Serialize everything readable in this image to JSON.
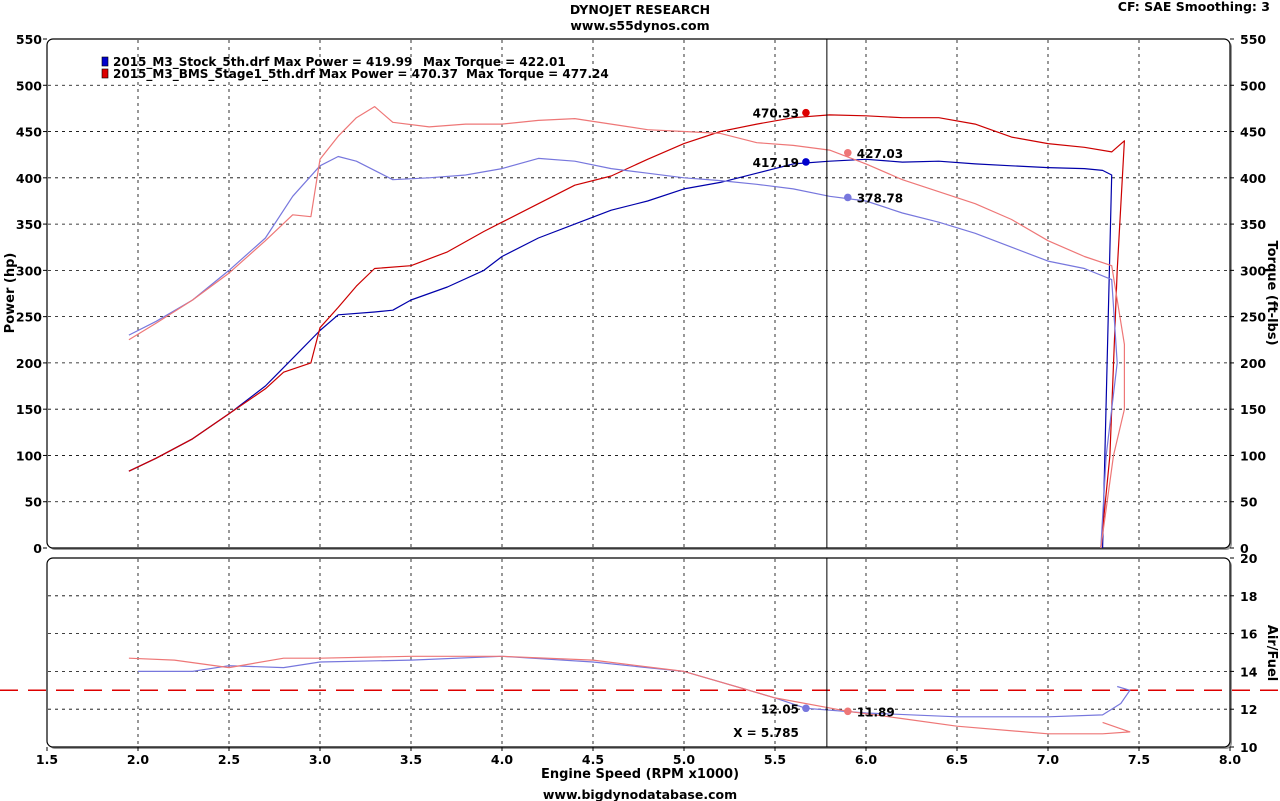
{
  "header": {
    "title": "DYNOJET RESEARCH",
    "subtitle": "www.s55dynos.com",
    "cf_info": "CF: SAE  Smoothing: 3",
    "footer": "www.bigdynodatabase.com"
  },
  "chart_data": [
    {
      "type": "line",
      "name": "power-torque",
      "xlabel": "Engine Speed (RPM x1000)",
      "ylabel": "Power (hp)",
      "y2label": "Torque (ft-lbs)",
      "xlim": [
        1.5,
        8.0
      ],
      "ylim": [
        0,
        550
      ],
      "y2lim": [
        0,
        550
      ],
      "x_ticks": [
        "1.5",
        "2.0",
        "2.5",
        "3.0",
        "3.5",
        "4.0",
        "4.5",
        "5.0",
        "5.5",
        "6.0",
        "6.5",
        "7.0",
        "7.5",
        "8.0"
      ],
      "y_ticks": [
        "0",
        "50",
        "100",
        "150",
        "200",
        "250",
        "300",
        "350",
        "400",
        "450",
        "500",
        "550"
      ],
      "grid": true,
      "legend_position": "top-left",
      "cursor_x": 5.785,
      "legend": [
        {
          "file": "2015_M3_Stock_5th.drf",
          "max_power_label": "Max Power = 419.99",
          "max_torque_label": "Max Torque = 422.01",
          "color": "#0000cc"
        },
        {
          "file": "2015_M3_BMS_Stage1_5th.drf",
          "max_power_label": "Max Power = 470.37",
          "max_torque_label": "Max Torque = 477.24",
          "color": "#dd0000"
        }
      ],
      "series": [
        {
          "name": "2015_M3_Stock_5th.drf",
          "measure": "Power",
          "color": "#0000aa",
          "points": [
            [
              1.95,
              83
            ],
            [
              2.1,
              97
            ],
            [
              2.3,
              118
            ],
            [
              2.5,
              145
            ],
            [
              2.7,
              175
            ],
            [
              2.85,
              205
            ],
            [
              3.0,
              235
            ],
            [
              3.1,
              252
            ],
            [
              3.3,
              255
            ],
            [
              3.4,
              257
            ],
            [
              3.5,
              268
            ],
            [
              3.7,
              282
            ],
            [
              3.9,
              300
            ],
            [
              4.0,
              315
            ],
            [
              4.2,
              335
            ],
            [
              4.4,
              350
            ],
            [
              4.6,
              365
            ],
            [
              4.8,
              375
            ],
            [
              5.0,
              388
            ],
            [
              5.2,
              395
            ],
            [
              5.4,
              405
            ],
            [
              5.6,
              415
            ],
            [
              5.8,
              418
            ],
            [
              6.0,
              420
            ],
            [
              6.2,
              417
            ],
            [
              6.4,
              418
            ],
            [
              6.6,
              415
            ],
            [
              6.8,
              413
            ],
            [
              7.0,
              411
            ],
            [
              7.2,
              410
            ],
            [
              7.3,
              408
            ],
            [
              7.35,
              403
            ],
            [
              7.3,
              0
            ]
          ]
        },
        {
          "name": "2015_M3_BMS_Stage1_5th.drf",
          "measure": "Power",
          "color": "#cc0000",
          "points": [
            [
              1.95,
              83
            ],
            [
              2.1,
              97
            ],
            [
              2.3,
              118
            ],
            [
              2.5,
              145
            ],
            [
              2.7,
              172
            ],
            [
              2.8,
              190
            ],
            [
              2.95,
              200
            ],
            [
              3.0,
              238
            ],
            [
              3.1,
              260
            ],
            [
              3.2,
              283
            ],
            [
              3.3,
              302
            ],
            [
              3.5,
              305
            ],
            [
              3.7,
              320
            ],
            [
              3.9,
              342
            ],
            [
              4.0,
              352
            ],
            [
              4.2,
              372
            ],
            [
              4.4,
              392
            ],
            [
              4.6,
              402
            ],
            [
              4.8,
              420
            ],
            [
              5.0,
              437
            ],
            [
              5.2,
              450
            ],
            [
              5.4,
              458
            ],
            [
              5.6,
              465
            ],
            [
              5.8,
              468
            ],
            [
              6.0,
              467
            ],
            [
              6.2,
              465
            ],
            [
              6.4,
              465
            ],
            [
              6.6,
              458
            ],
            [
              6.8,
              444
            ],
            [
              7.0,
              437
            ],
            [
              7.2,
              433
            ],
            [
              7.35,
              428
            ],
            [
              7.42,
              440
            ],
            [
              7.38,
              300
            ],
            [
              7.34,
              100
            ],
            [
              7.29,
              0
            ]
          ]
        },
        {
          "name": "2015_M3_Stock_5th.drf",
          "measure": "Torque",
          "color": "#7777dd",
          "points": [
            [
              1.95,
              230
            ],
            [
              2.1,
              245
            ],
            [
              2.3,
              268
            ],
            [
              2.5,
              300
            ],
            [
              2.7,
              335
            ],
            [
              2.85,
              380
            ],
            [
              3.0,
              413
            ],
            [
              3.1,
              423
            ],
            [
              3.2,
              418
            ],
            [
              3.4,
              398
            ],
            [
              3.6,
              400
            ],
            [
              3.8,
              403
            ],
            [
              4.0,
              410
            ],
            [
              4.2,
              421
            ],
            [
              4.4,
              418
            ],
            [
              4.6,
              410
            ],
            [
              4.8,
              405
            ],
            [
              5.0,
              400
            ],
            [
              5.2,
              397
            ],
            [
              5.4,
              393
            ],
            [
              5.6,
              388
            ],
            [
              5.8,
              380
            ],
            [
              6.0,
              375
            ],
            [
              6.2,
              362
            ],
            [
              6.4,
              352
            ],
            [
              6.6,
              340
            ],
            [
              6.8,
              325
            ],
            [
              7.0,
              310
            ],
            [
              7.2,
              302
            ],
            [
              7.35,
              290
            ],
            [
              7.38,
              200
            ],
            [
              7.32,
              100
            ],
            [
              7.29,
              0
            ]
          ]
        },
        {
          "name": "2015_M3_BMS_Stage1_5th.drf",
          "measure": "Torque",
          "color": "#ee7777",
          "points": [
            [
              1.95,
              225
            ],
            [
              2.1,
              243
            ],
            [
              2.3,
              268
            ],
            [
              2.5,
              297
            ],
            [
              2.7,
              332
            ],
            [
              2.85,
              360
            ],
            [
              2.95,
              358
            ],
            [
              3.0,
              420
            ],
            [
              3.1,
              445
            ],
            [
              3.2,
              465
            ],
            [
              3.3,
              477
            ],
            [
              3.4,
              460
            ],
            [
              3.6,
              455
            ],
            [
              3.8,
              458
            ],
            [
              4.0,
              458
            ],
            [
              4.2,
              462
            ],
            [
              4.4,
              464
            ],
            [
              4.6,
              458
            ],
            [
              4.8,
              452
            ],
            [
              5.0,
              450
            ],
            [
              5.2,
              448
            ],
            [
              5.4,
              438
            ],
            [
              5.6,
              435
            ],
            [
              5.8,
              430
            ],
            [
              6.0,
              415
            ],
            [
              6.2,
              398
            ],
            [
              6.4,
              385
            ],
            [
              6.6,
              372
            ],
            [
              6.8,
              355
            ],
            [
              7.0,
              332
            ],
            [
              7.2,
              315
            ],
            [
              7.35,
              305
            ],
            [
              7.42,
              220
            ],
            [
              7.42,
              150
            ],
            [
              7.36,
              100
            ],
            [
              7.29,
              0
            ]
          ]
        }
      ],
      "markers": [
        {
          "x": 5.67,
          "y": 470.33,
          "label": "470.33",
          "color": "#dd0000",
          "label_side": "left"
        },
        {
          "x": 5.67,
          "y": 417.19,
          "label": "417.19",
          "color": "#0000cc",
          "label_side": "left"
        },
        {
          "x": 5.9,
          "y": 427.03,
          "label": "427.03",
          "color": "#ee7777",
          "label_side": "right"
        },
        {
          "x": 5.9,
          "y": 378.78,
          "label": "378.78",
          "color": "#7777dd",
          "label_side": "right"
        }
      ]
    },
    {
      "type": "line",
      "name": "air-fuel",
      "xlabel": "Engine Speed (RPM x1000)",
      "y2label": "Air/Fuel",
      "xlim": [
        1.5,
        8.0
      ],
      "ylim": [
        10,
        20
      ],
      "y_ticks": [
        "10",
        "12",
        "14",
        "16",
        "18",
        "20"
      ],
      "reference_line": 13,
      "grid": true,
      "cursor_x": 5.785,
      "cursor_label": "X = 5.785",
      "series": [
        {
          "name": "2015_M3_Stock_5th.drf",
          "measure": "Air/Fuel",
          "color": "#7777dd",
          "points": [
            [
              2.0,
              14.0
            ],
            [
              2.3,
              14.0
            ],
            [
              2.5,
              14.3
            ],
            [
              2.8,
              14.2
            ],
            [
              3.0,
              14.5
            ],
            [
              3.5,
              14.6
            ],
            [
              4.0,
              14.8
            ],
            [
              4.5,
              14.5
            ],
            [
              5.0,
              14.0
            ],
            [
              5.5,
              12.6
            ],
            [
              5.67,
              12.05
            ],
            [
              6.0,
              11.8
            ],
            [
              6.5,
              11.6
            ],
            [
              7.0,
              11.6
            ],
            [
              7.3,
              11.7
            ],
            [
              7.4,
              12.3
            ],
            [
              7.45,
              13.0
            ],
            [
              7.38,
              13.2
            ]
          ]
        },
        {
          "name": "2015_M3_BMS_Stage1_5th.drf",
          "measure": "Air/Fuel",
          "color": "#ee7777",
          "points": [
            [
              1.95,
              14.7
            ],
            [
              2.2,
              14.6
            ],
            [
              2.5,
              14.2
            ],
            [
              2.8,
              14.7
            ],
            [
              3.0,
              14.7
            ],
            [
              3.5,
              14.8
            ],
            [
              4.0,
              14.8
            ],
            [
              4.5,
              14.6
            ],
            [
              5.0,
              14.0
            ],
            [
              5.5,
              12.6
            ],
            [
              5.9,
              11.89
            ],
            [
              6.2,
              11.5
            ],
            [
              6.5,
              11.1
            ],
            [
              7.0,
              10.7
            ],
            [
              7.3,
              10.7
            ],
            [
              7.45,
              10.8
            ],
            [
              7.3,
              11.3
            ]
          ]
        }
      ],
      "markers": [
        {
          "x": 5.67,
          "y": 12.05,
          "label": "12.05",
          "color": "#7777dd",
          "label_side": "left"
        },
        {
          "x": 5.9,
          "y": 11.89,
          "label": "11.89",
          "color": "#ee7777",
          "label_side": "right"
        }
      ]
    }
  ]
}
